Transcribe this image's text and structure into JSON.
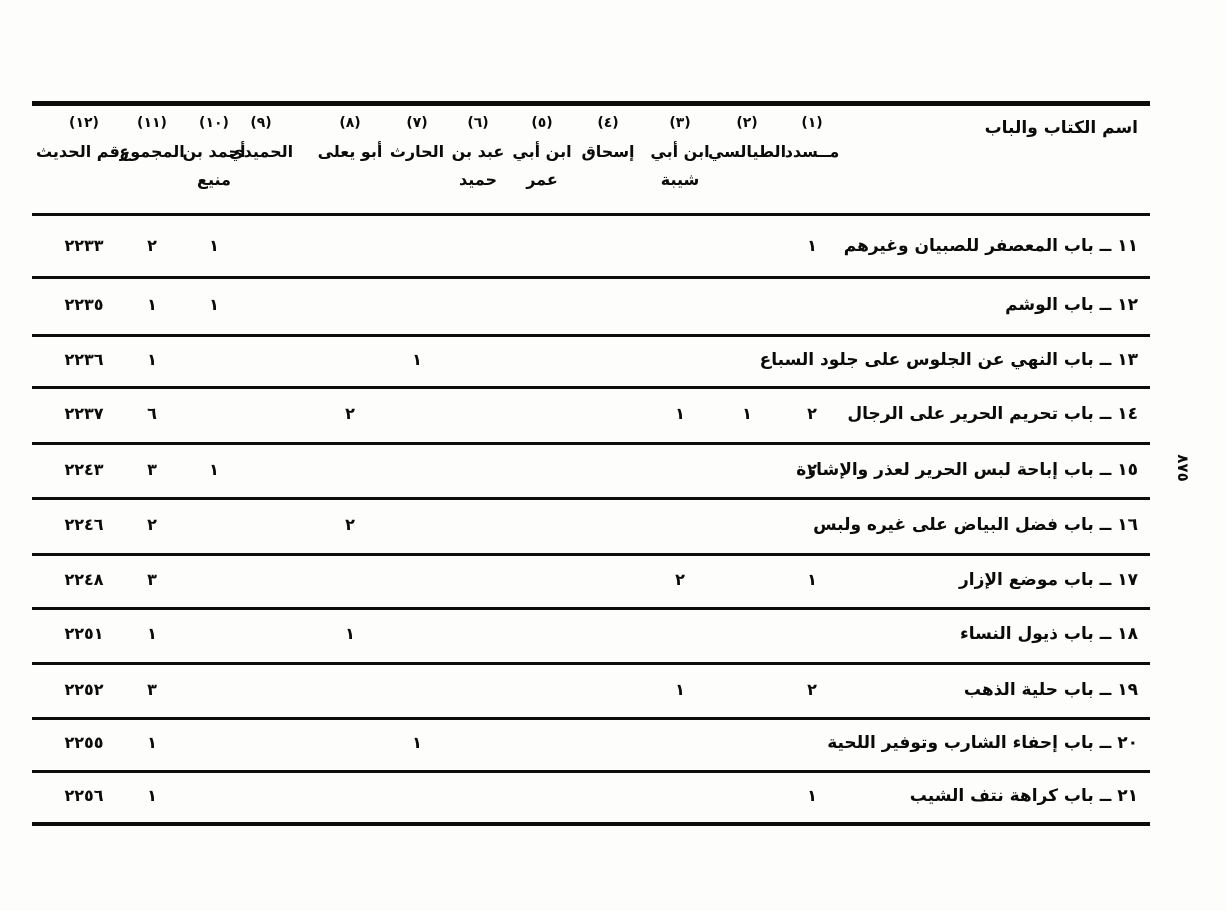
{
  "page": {
    "rotated_page_number": "٨٧٥"
  },
  "table": {
    "book_column_header": "اسم الكتاب والباب",
    "columns": [
      {
        "num": "(١)",
        "line1": "مــسدد",
        "line2": ""
      },
      {
        "num": "(٢)",
        "line1": "الطيالسي",
        "line2": ""
      },
      {
        "num": "(٣)",
        "line1": "ابن أبي",
        "line2": "شيبة"
      },
      {
        "num": "(٤)",
        "line1": "إسحاق",
        "line2": ""
      },
      {
        "num": "(٥)",
        "line1": "ابن أبي",
        "line2": "عمر"
      },
      {
        "num": "(٦)",
        "line1": "عبد بن",
        "line2": "حميد"
      },
      {
        "num": "(٧)",
        "line1": "الحارث",
        "line2": ""
      },
      {
        "num": "(٨)",
        "line1": "أبو يعلى",
        "line2": ""
      },
      {
        "num": "(٩)",
        "line1": "الحميدي",
        "line2": ""
      },
      {
        "num": "(١٠)",
        "line1": "أحمد بن",
        "line2": "منيع"
      },
      {
        "num": "(١١)",
        "line1": "المجموع",
        "line2": ""
      },
      {
        "num": "(١٢)",
        "line1": "رقم الحديث",
        "line2": ""
      }
    ],
    "rows": [
      {
        "title": "١١ ــ باب المعصفر للصبيان وغيرهم",
        "cells": {
          "c1": "١",
          "c10": "١",
          "c11": "٢",
          "c12": "٢٢٣٣"
        }
      },
      {
        "title": "١٢ ــ باب الوشم",
        "cells": {
          "c10": "١",
          "c11": "١",
          "c12": "٢٢٣٥"
        }
      },
      {
        "title": "١٣ ــ باب النهي عن الجلوس على جلود السباع",
        "cells": {
          "c7": "١",
          "c11": "١",
          "c12": "٢٢٣٦"
        }
      },
      {
        "title": "١٤ ــ باب تحريم الحرير على الرجال",
        "cells": {
          "c1": "٢",
          "c2": "١",
          "c3": "١",
          "c8": "٢",
          "c11": "٦",
          "c12": "٢٢٣٧"
        }
      },
      {
        "title": "١٥ ــ باب إباحة لبس الحرير لعذر والإشارة",
        "cells": {
          "c1": "٢",
          "c10": "١",
          "c11": "٣",
          "c12": "٢٢٤٣"
        }
      },
      {
        "title": "١٦ ــ باب فضل البياض على غيره ولبس",
        "cells": {
          "c8": "٢",
          "c11": "٢",
          "c12": "٢٢٤٦"
        }
      },
      {
        "title": "١٧ ــ باب موضع الإزار",
        "cells": {
          "c1": "١",
          "c3": "٢",
          "c11": "٣",
          "c12": "٢٢٤٨"
        }
      },
      {
        "title": "١٨ ــ باب ذيول النساء",
        "cells": {
          "c8": "١",
          "c11": "١",
          "c12": "٢٢٥١"
        }
      },
      {
        "title": "١٩ ــ باب حلية الذهب",
        "cells": {
          "c1": "٢",
          "c3": "١",
          "c11": "٣",
          "c12": "٢٢٥٢"
        }
      },
      {
        "title": "٢٠ ــ باب إحفاء الشارب وتوفير اللحية",
        "cells": {
          "c7": "١",
          "c11": "١",
          "c12": "٢٢٥٥"
        }
      },
      {
        "title": "٢١ ــ باب كراهة نتف الشيب",
        "cells": {
          "c1": "١",
          "c11": "١",
          "c12": "٢٢٥٦"
        }
      }
    ]
  }
}
